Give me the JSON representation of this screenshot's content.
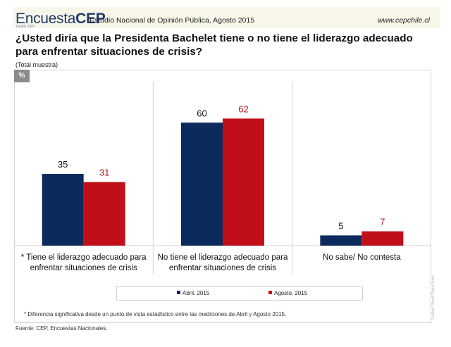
{
  "header": {
    "logo_light": "Encuesta",
    "logo_bold": "CEP",
    "logo_since": "Desde 1987",
    "study_title": "Estudio Nacional de Opinión Pública, Agosto 2015",
    "site": "www.cepchile.cl"
  },
  "question": "¿Usted diría que la Presidenta Bachelet tiene o no tiene el liderazgo adecuado para enfrentar situaciones de crisis?",
  "sample": "(Total muestra)",
  "unit_badge": "%",
  "chart_data": {
    "type": "bar",
    "categories": [
      [
        "* Tiene el liderazgo adecuado para",
        "enfrentar situaciones de crisis"
      ],
      [
        "No tiene el liderazgo adecuado para",
        "enfrentar situaciones de crisis"
      ],
      [
        "No sabe/ No contesta"
      ]
    ],
    "series": [
      {
        "name": "Abril. 2015",
        "values": [
          35,
          60,
          5
        ],
        "color": "#0d2a5c",
        "label_color": "#111111"
      },
      {
        "name": "Agosto. 2015",
        "values": [
          31,
          62,
          7
        ],
        "color": "#c10f1a",
        "label_color": "#c10f1a"
      }
    ],
    "ylim": [
      0,
      80
    ],
    "grid": false,
    "legend_placement": "bottom"
  },
  "footnote": "* Diferencia significativa desde un punto de vista estadístico entre las mediciones de Abril y Agosto 2015.",
  "source": "Fuente: CEP, Encuestas Nacionales.",
  "credit": "Gráfico: Sandi Parra Arias"
}
